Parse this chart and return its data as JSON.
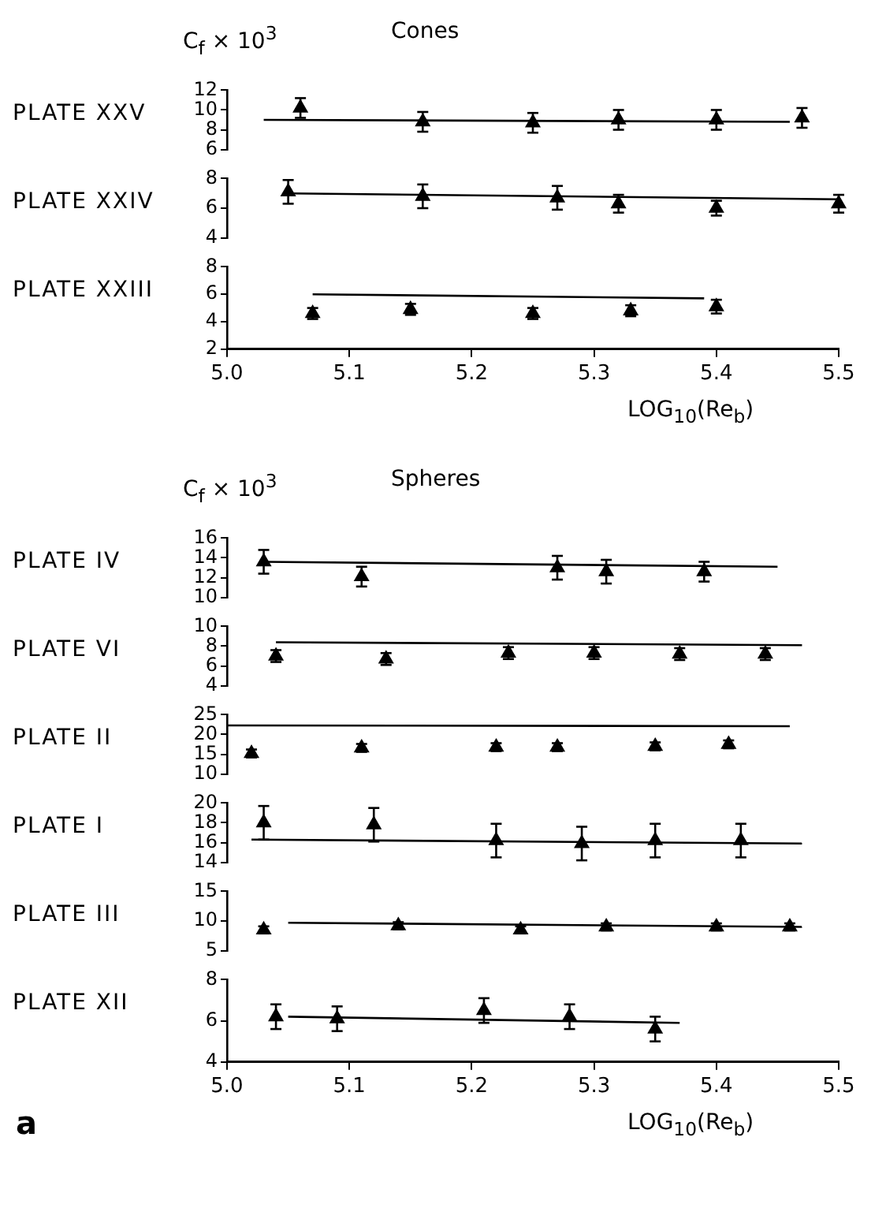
{
  "chart_data": [
    {
      "type": "scatter",
      "title": "Cones",
      "annotations": [
        "C$_{f}$ × 10$^{3}$"
      ],
      "ylabel": "PLATE XXV",
      "xlim": [
        5.0,
        5.5
      ],
      "ylim": [
        6,
        12
      ],
      "yticks": [
        6,
        8,
        10,
        12
      ],
      "tick_labels": "y",
      "marker": "triangle",
      "series": [
        {
          "type": "scatter",
          "color": "#000000",
          "x": [
            5.06,
            5.16,
            5.25,
            5.32,
            5.4,
            5.47
          ],
          "values": [
            10.2,
            8.8,
            8.7,
            9.0,
            9.0,
            9.2
          ],
          "errors": [
            1,
            1,
            1,
            1,
            1,
            1
          ]
        },
        {
          "type": "line",
          "color": "#000000",
          "marker": "none",
          "x": [
            5.03,
            5.46
          ],
          "values": [
            9.0,
            8.8
          ]
        }
      ]
    },
    {
      "type": "scatter",
      "ylabel": "PLATE XXIV",
      "xlim": [
        5.0,
        5.5
      ],
      "ylim": [
        4,
        8
      ],
      "yticks": [
        4,
        6,
        8
      ],
      "tick_labels": "y",
      "marker": "triangle",
      "series": [
        {
          "type": "scatter",
          "color": "#000000",
          "x": [
            5.05,
            5.16,
            5.27,
            5.32,
            5.4,
            5.5
          ],
          "values": [
            7.1,
            6.8,
            6.7,
            6.3,
            6.0,
            6.3
          ],
          "errors": [
            0.8,
            0.8,
            0.8,
            0.6,
            0.5,
            0.6
          ]
        },
        {
          "type": "line",
          "color": "#000000",
          "marker": "none",
          "x": [
            5.05,
            5.5
          ],
          "values": [
            7.0,
            6.6
          ]
        }
      ]
    },
    {
      "type": "scatter",
      "ylabel": "PLATE XXIII",
      "xlabel": "LOG$_{10}$(Re$_{b}$)",
      "xlim": [
        5.0,
        5.5
      ],
      "xticks": [
        {
          "value": 5,
          "label": "5.0"
        },
        5.1,
        5.2,
        5.3,
        5.4,
        5.5
      ],
      "ylim": [
        2,
        8
      ],
      "yticks": [
        2,
        4,
        6,
        8
      ],
      "marker": "triangle",
      "series": [
        {
          "type": "scatter",
          "color": "#000000",
          "x": [
            5.07,
            5.15,
            5.25,
            5.33,
            5.4
          ],
          "values": [
            4.6,
            4.9,
            4.6,
            4.8,
            5.1
          ],
          "errors": [
            0.4,
            0.4,
            0.4,
            0.4,
            0.5
          ]
        },
        {
          "type": "line",
          "color": "#000000",
          "marker": "none",
          "x": [
            5.07,
            5.39
          ],
          "values": [
            6.0,
            5.7
          ]
        }
      ]
    },
    {
      "type": "scatter",
      "title": "Spheres",
      "annotations": [
        "C$_{f}$ × 10$^{3}$"
      ],
      "ylabel": "PLATE IV",
      "xlim": [
        5.0,
        5.5
      ],
      "ylim": [
        10,
        16
      ],
      "yticks": [
        10,
        12,
        14,
        16
      ],
      "tick_labels": "y",
      "marker": "triangle",
      "series": [
        {
          "type": "scatter",
          "color": "#000000",
          "x": [
            5.03,
            5.11,
            5.27,
            5.31,
            5.39
          ],
          "values": [
            13.6,
            12.1,
            13.0,
            12.6,
            12.6
          ],
          "errors": [
            1.2,
            1.0,
            1.2,
            1.2,
            1.0
          ]
        },
        {
          "type": "line",
          "color": "#000000",
          "marker": "none",
          "x": [
            5.03,
            5.45
          ],
          "values": [
            13.6,
            13.1
          ]
        }
      ]
    },
    {
      "type": "scatter",
      "ylabel": "PLATE VI",
      "xlim": [
        5.0,
        5.5
      ],
      "ylim": [
        4,
        10
      ],
      "yticks": [
        4,
        6,
        8,
        10
      ],
      "tick_labels": "y",
      "marker": "triangle",
      "series": [
        {
          "type": "scatter",
          "color": "#000000",
          "x": [
            5.04,
            5.13,
            5.23,
            5.3,
            5.37,
            5.44
          ],
          "values": [
            7.0,
            6.7,
            7.3,
            7.3,
            7.2,
            7.2
          ],
          "errors": [
            0.6,
            0.6,
            0.6,
            0.6,
            0.6,
            0.6
          ]
        },
        {
          "type": "line",
          "color": "#000000",
          "marker": "none",
          "x": [
            5.04,
            5.47
          ],
          "values": [
            8.4,
            8.1
          ]
        }
      ]
    },
    {
      "type": "scatter",
      "ylabel": "PLATE II",
      "xlim": [
        5.0,
        5.5
      ],
      "ylim": [
        10,
        25
      ],
      "yticks": [
        10,
        15,
        20,
        25
      ],
      "tick_labels": "y",
      "marker": "triangle",
      "series": [
        {
          "type": "scatter",
          "color": "#000000",
          "x": [
            5.02,
            5.11,
            5.22,
            5.27,
            5.35,
            5.41
          ],
          "values": [
            15.2,
            16.6,
            16.8,
            16.8,
            17.0,
            17.5
          ],
          "errors": [
            1,
            1,
            1,
            1,
            1,
            1
          ]
        },
        {
          "type": "line",
          "color": "#000000",
          "marker": "none",
          "x": [
            5.0,
            5.46
          ],
          "values": [
            22.3,
            22.1
          ]
        }
      ]
    },
    {
      "type": "scatter",
      "ylabel": "PLATE I",
      "xlim": [
        5.0,
        5.5
      ],
      "ylim": [
        14,
        20
      ],
      "yticks": [
        14,
        16,
        18,
        20
      ],
      "tick_labels": "y",
      "marker": "triangle",
      "series": [
        {
          "type": "scatter",
          "color": "#000000",
          "x": [
            5.03,
            5.12,
            5.22,
            5.29,
            5.35,
            5.42
          ],
          "values": [
            18.0,
            17.8,
            16.2,
            15.9,
            16.2,
            16.2
          ],
          "errors": [
            1.7,
            1.7,
            1.7,
            1.7,
            1.7,
            1.7
          ]
        },
        {
          "type": "line",
          "color": "#000000",
          "marker": "none",
          "x": [
            5.02,
            5.47
          ],
          "values": [
            16.3,
            15.9
          ]
        }
      ]
    },
    {
      "type": "scatter",
      "ylabel": "PLATE III",
      "xlim": [
        5.0,
        5.5
      ],
      "ylim": [
        5,
        15
      ],
      "yticks": [
        5,
        10,
        15
      ],
      "tick_labels": "y",
      "marker": "triangle",
      "series": [
        {
          "type": "scatter",
          "color": "#000000",
          "x": [
            5.03,
            5.14,
            5.24,
            5.31,
            5.4,
            5.46
          ],
          "values": [
            8.5,
            9.2,
            8.5,
            9.0,
            9.0,
            9.0
          ],
          "errors": [
            0.6,
            0.6,
            0.6,
            0.6,
            0.6,
            0.6
          ]
        },
        {
          "type": "line",
          "color": "#000000",
          "marker": "none",
          "x": [
            5.05,
            5.47
          ],
          "values": [
            9.7,
            9.0
          ]
        }
      ]
    },
    {
      "type": "scatter",
      "ylabel": "PLATE XII",
      "xlabel": "LOG$_{10}$(Re$_{b}$)",
      "annotations": [
        "a"
      ],
      "xlim": [
        5.0,
        5.5
      ],
      "xticks": [
        {
          "value": 5,
          "label": "5.0"
        },
        5.1,
        5.2,
        5.3,
        5.4,
        5.5
      ],
      "ylim": [
        4,
        8
      ],
      "yticks": [
        4,
        6,
        8
      ],
      "marker": "triangle",
      "series": [
        {
          "type": "scatter",
          "color": "#000000",
          "x": [
            5.04,
            5.09,
            5.21,
            5.28,
            5.35
          ],
          "values": [
            6.2,
            6.1,
            6.5,
            6.2,
            5.6
          ],
          "errors": [
            0.6,
            0.6,
            0.6,
            0.6,
            0.6
          ]
        },
        {
          "type": "line",
          "color": "#000000",
          "marker": "none",
          "x": [
            5.05,
            5.37
          ],
          "values": [
            6.2,
            5.9
          ]
        }
      ]
    }
  ]
}
